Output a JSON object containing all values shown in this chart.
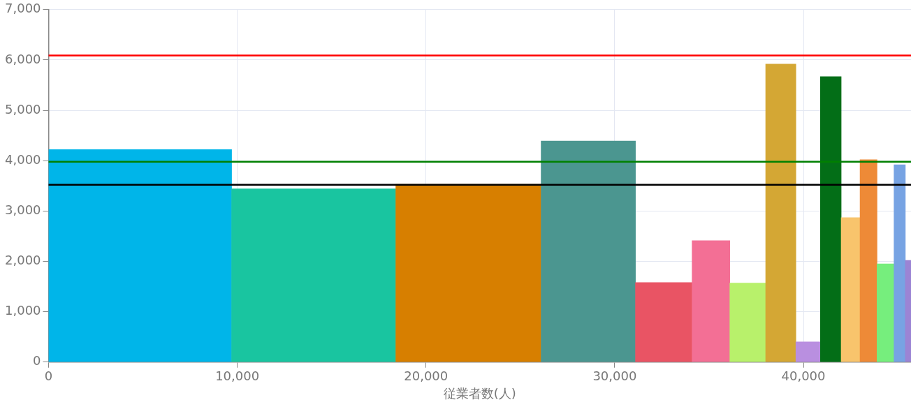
{
  "chart_data": {
    "type": "histogram",
    "xlabel": "従業者数(人)",
    "bins": [
      0,
      9700,
      18400,
      26100,
      31100,
      34100,
      36100,
      38000,
      39600,
      40900,
      42000,
      43000,
      43900,
      44800,
      45400,
      45700
    ],
    "values": [
      4220,
      3440,
      3530,
      4390,
      1580,
      2410,
      1570,
      5920,
      400,
      5670,
      2870,
      4020,
      1950,
      3920,
      2020
    ],
    "colors": [
      "#00b5e9",
      "#19c5a0",
      "#d77f00",
      "#4b9690",
      "#e95464",
      "#f36f95",
      "#b8f16b",
      "#d4a734",
      "#b98fe0",
      "#036e17",
      "#f8c46c",
      "#ee8a37",
      "#76ee7d",
      "#77a3e3",
      "#9b84d4"
    ],
    "xlim": [
      0,
      45700
    ],
    "xticks": [
      0,
      {
        "value": 10000,
        "label": "10,000"
      },
      {
        "value": 20000,
        "label": "20,000"
      },
      {
        "value": 30000,
        "label": "30,000"
      },
      {
        "value": 40000,
        "label": "40,000"
      }
    ],
    "ylim": [
      0,
      7000
    ],
    "yticks": [
      0,
      {
        "value": 1000,
        "label": "1,000"
      },
      {
        "value": 2000,
        "label": "2,000"
      },
      {
        "value": 3000,
        "label": "3,000"
      },
      {
        "value": 4000,
        "label": "4,000"
      },
      {
        "value": 5000,
        "label": "5,000"
      },
      {
        "value": 6000,
        "label": "6,000"
      },
      {
        "value": 7000,
        "label": "7,000"
      }
    ],
    "ref_lines": [
      {
        "axis": "y",
        "value": 6090,
        "color": "#ff0000"
      },
      {
        "axis": "y",
        "value": 3980,
        "color": "#008000"
      },
      {
        "axis": "y",
        "value": 3520,
        "color": "#000000"
      }
    ],
    "grid": true,
    "legend": false
  }
}
